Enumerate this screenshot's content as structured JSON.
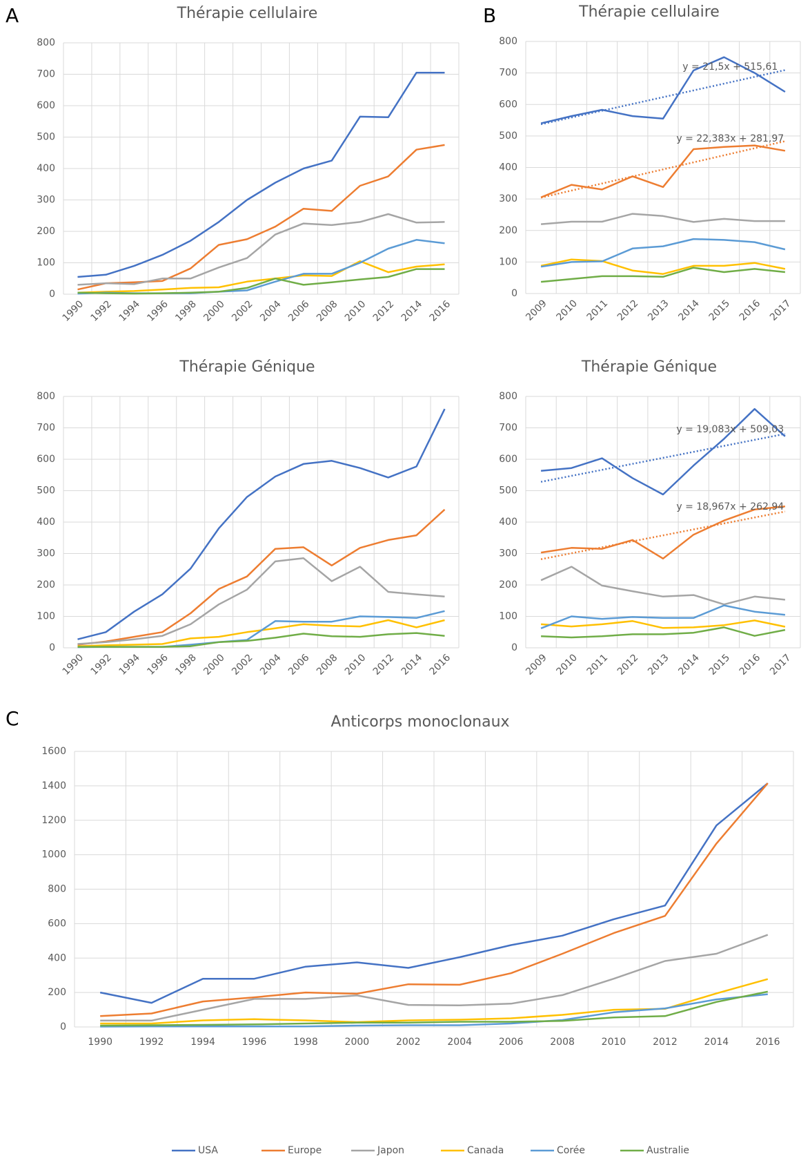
{
  "panels": [
    "A",
    "B",
    "C"
  ],
  "chart_data": [
    {
      "type": "line",
      "title": "Thérapie cellulaire",
      "categories": [
        "1990",
        "1992",
        "1994",
        "1996",
        "1998",
        "2000",
        "2002",
        "2004",
        "2006",
        "2008",
        "2010",
        "2012",
        "2014",
        "2016"
      ],
      "ylim": [
        0,
        800
      ],
      "yticks": [
        0,
        100,
        200,
        300,
        400,
        500,
        600,
        700,
        800
      ],
      "grid": true,
      "series": [
        {
          "color": "#4472c4",
          "values": [
            55,
            62,
            90,
            125,
            170,
            230,
            300,
            355,
            400,
            425,
            565,
            563,
            705,
            705
          ]
        },
        {
          "color": "#ed7d31",
          "values": [
            15,
            35,
            38,
            42,
            82,
            157,
            175,
            215,
            272,
            265,
            345,
            375,
            460,
            475
          ]
        },
        {
          "color": "#a5a5a5",
          "values": [
            30,
            35,
            32,
            50,
            50,
            85,
            115,
            190,
            225,
            220,
            230,
            255,
            228,
            230
          ]
        },
        {
          "color": "#ffc000",
          "values": [
            5,
            8,
            10,
            15,
            20,
            22,
            40,
            50,
            60,
            58,
            105,
            70,
            88,
            95
          ]
        },
        {
          "color": "#5b9bd5",
          "values": [
            2,
            5,
            3,
            3,
            3,
            8,
            12,
            40,
            65,
            65,
            100,
            145,
            173,
            162
          ]
        },
        {
          "color": "#70ad47",
          "values": [
            5,
            3,
            2,
            3,
            5,
            8,
            20,
            50,
            30,
            38,
            47,
            55,
            80,
            80
          ]
        }
      ]
    },
    {
      "type": "line",
      "title": "Thérapie cellulaire",
      "categories": [
        "2009",
        "2010",
        "2011",
        "2012",
        "2013",
        "2014",
        "2015",
        "2016",
        "2017"
      ],
      "ylim": [
        0,
        800
      ],
      "yticks": [
        0,
        100,
        200,
        300,
        400,
        500,
        600,
        700,
        800
      ],
      "grid": true,
      "series": [
        {
          "color": "#4472c4",
          "values": [
            540,
            563,
            583,
            563,
            555,
            708,
            750,
            700,
            640
          ],
          "trendline": {
            "label": "y = 21,5x + 515,61",
            "slope": 21.5,
            "intercept": 515.61
          }
        },
        {
          "color": "#ed7d31",
          "values": [
            305,
            345,
            330,
            372,
            338,
            458,
            465,
            470,
            453
          ],
          "trendline": {
            "label": "y = 22,383x + 281,97",
            "slope": 22.383,
            "intercept": 281.97
          }
        },
        {
          "color": "#a5a5a5",
          "values": [
            220,
            228,
            228,
            253,
            246,
            227,
            237,
            230,
            230
          ]
        },
        {
          "color": "#ffc000",
          "values": [
            88,
            108,
            103,
            73,
            62,
            88,
            88,
            97,
            78
          ]
        },
        {
          "color": "#5b9bd5",
          "values": [
            85,
            100,
            102,
            143,
            150,
            173,
            170,
            163,
            140
          ]
        },
        {
          "color": "#70ad47",
          "values": [
            37,
            46,
            55,
            55,
            53,
            82,
            68,
            78,
            68
          ]
        }
      ]
    },
    {
      "type": "line",
      "title": "Thérapie Génique",
      "categories": [
        "1990",
        "1992",
        "1994",
        "1996",
        "1998",
        "2000",
        "2002",
        "2004",
        "2006",
        "2008",
        "2010",
        "2012",
        "2014",
        "2016"
      ],
      "ylim": [
        0,
        800
      ],
      "yticks": [
        0,
        100,
        200,
        300,
        400,
        500,
        600,
        700,
        800
      ],
      "grid": true,
      "series": [
        {
          "color": "#4472c4",
          "values": [
            27,
            50,
            115,
            170,
            252,
            380,
            480,
            545,
            585,
            595,
            572,
            542,
            577,
            760
          ]
        },
        {
          "color": "#ed7d31",
          "values": [
            10,
            20,
            35,
            50,
            110,
            187,
            227,
            315,
            320,
            262,
            318,
            343,
            358,
            440
          ]
        },
        {
          "color": "#a5a5a5",
          "values": [
            12,
            18,
            27,
            38,
            75,
            138,
            185,
            275,
            285,
            212,
            258,
            178,
            170,
            163
          ]
        },
        {
          "color": "#ffc000",
          "values": [
            5,
            8,
            10,
            12,
            30,
            35,
            50,
            62,
            75,
            70,
            68,
            88,
            65,
            88
          ]
        },
        {
          "color": "#5b9bd5",
          "values": [
            2,
            3,
            3,
            3,
            10,
            18,
            25,
            85,
            83,
            83,
            100,
            98,
            95,
            117
          ]
        },
        {
          "color": "#70ad47",
          "values": [
            3,
            3,
            3,
            3,
            5,
            18,
            22,
            32,
            45,
            37,
            35,
            43,
            47,
            38
          ]
        }
      ]
    },
    {
      "type": "line",
      "title": "Thérapie Génique",
      "categories": [
        "2009",
        "2010",
        "2011",
        "2012",
        "2013",
        "2014",
        "2015",
        "2016",
        "2017"
      ],
      "ylim": [
        0,
        800
      ],
      "yticks": [
        0,
        100,
        200,
        300,
        400,
        500,
        600,
        700,
        800
      ],
      "grid": true,
      "series": [
        {
          "color": "#4472c4",
          "values": [
            563,
            572,
            603,
            540,
            488,
            580,
            665,
            760,
            673
          ],
          "trendline": {
            "label": "y = 19,083x + 509,03",
            "slope": 19.083,
            "intercept": 509.03
          }
        },
        {
          "color": "#ed7d31",
          "values": [
            303,
            318,
            315,
            343,
            284,
            360,
            405,
            440,
            450
          ],
          "trendline": {
            "label": "y = 18,967x + 262,94",
            "slope": 18.967,
            "intercept": 262.94
          }
        },
        {
          "color": "#a5a5a5",
          "values": [
            215,
            258,
            198,
            180,
            163,
            168,
            138,
            163,
            153
          ]
        },
        {
          "color": "#ffc000",
          "values": [
            75,
            68,
            75,
            85,
            63,
            65,
            72,
            87,
            67
          ]
        },
        {
          "color": "#5b9bd5",
          "values": [
            62,
            100,
            92,
            98,
            95,
            95,
            135,
            115,
            105
          ]
        },
        {
          "color": "#70ad47",
          "values": [
            37,
            33,
            37,
            43,
            43,
            48,
            65,
            38,
            57
          ]
        }
      ]
    },
    {
      "type": "line",
      "title": "Anticorps monoclonaux",
      "categories": [
        "1990",
        "1992",
        "1994",
        "1996",
        "1998",
        "2000",
        "2002",
        "2004",
        "2006",
        "2008",
        "2010",
        "2012",
        "2014",
        "2016"
      ],
      "ylim": [
        0,
        1600
      ],
      "yticks": [
        0,
        200,
        400,
        600,
        800,
        1000,
        1200,
        1400,
        1600
      ],
      "grid": true,
      "legend": "bottom",
      "series": [
        {
          "name": "USA",
          "color": "#4472c4",
          "values": [
            200,
            140,
            280,
            280,
            350,
            375,
            343,
            405,
            475,
            530,
            625,
            705,
            1170,
            1415
          ]
        },
        {
          "name": "Europe",
          "color": "#ed7d31",
          "values": [
            63,
            78,
            148,
            172,
            200,
            193,
            248,
            245,
            312,
            425,
            545,
            645,
            1065,
            1415
          ]
        },
        {
          "name": "Japon",
          "color": "#a5a5a5",
          "values": [
            37,
            37,
            100,
            163,
            163,
            183,
            128,
            125,
            135,
            185,
            280,
            383,
            425,
            535
          ]
        },
        {
          "name": "Canada",
          "color": "#ffc000",
          "values": [
            20,
            20,
            38,
            45,
            38,
            28,
            38,
            42,
            50,
            70,
            100,
            105,
            195,
            278
          ]
        },
        {
          "name": "Corée",
          "color": "#5b9bd5",
          "values": [
            2,
            3,
            3,
            3,
            3,
            8,
            10,
            10,
            20,
            40,
            85,
            108,
            160,
            190
          ]
        },
        {
          "name": "Australie",
          "color": "#70ad47",
          "values": [
            8,
            10,
            12,
            15,
            20,
            25,
            25,
            30,
            30,
            35,
            55,
            63,
            145,
            205
          ]
        }
      ]
    }
  ]
}
